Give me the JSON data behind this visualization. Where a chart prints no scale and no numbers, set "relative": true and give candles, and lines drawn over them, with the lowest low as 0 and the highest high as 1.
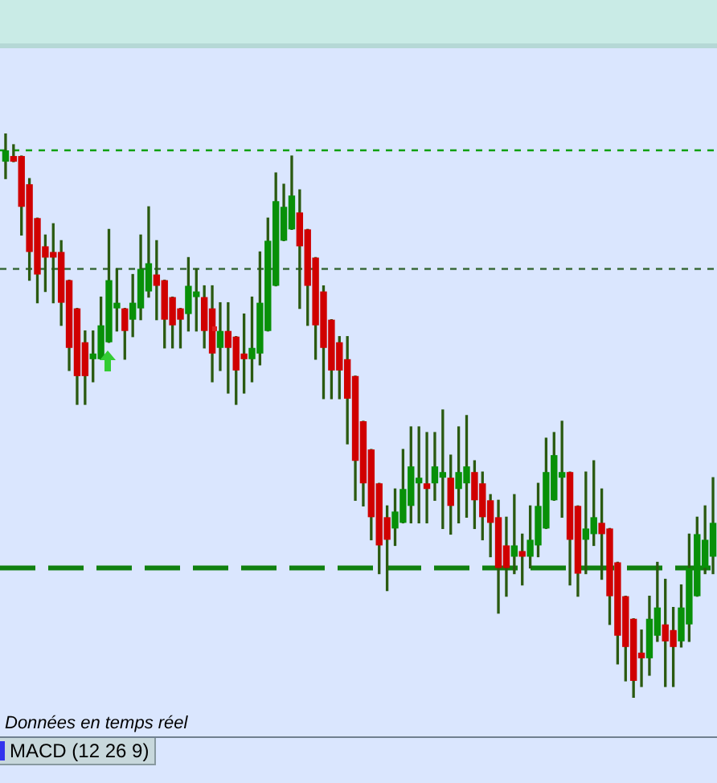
{
  "chart_data": {
    "type": "candlestick",
    "relative": true,
    "categories": [
      null,
      null,
      null,
      null,
      null,
      null,
      null,
      null,
      null,
      null,
      null,
      null,
      null,
      null,
      null,
      null,
      null,
      null,
      null,
      null,
      null,
      null,
      null,
      null,
      null,
      null,
      null,
      null,
      null,
      null,
      null,
      null,
      null,
      null,
      null,
      null,
      null,
      null,
      null,
      null,
      null,
      null,
      null,
      null,
      null,
      null,
      null,
      null,
      null,
      null,
      null,
      null,
      null,
      null,
      null,
      null,
      null,
      null,
      null,
      null,
      null,
      null,
      null,
      null,
      null,
      null,
      null,
      null,
      null,
      null,
      null,
      null,
      null,
      null,
      null,
      null,
      null,
      null,
      null,
      null,
      null,
      null,
      null,
      null,
      null,
      null,
      null,
      null,
      null,
      null
    ],
    "ohlc": [
      [
        0.95,
        1,
        0.92,
        0.97
      ],
      [
        0.96,
        0.98,
        0.95,
        0.95
      ],
      [
        0.96,
        0.96,
        0.82,
        0.87
      ],
      [
        0.91,
        0.92,
        0.74,
        0.79
      ],
      [
        0.85,
        0.85,
        0.7,
        0.75
      ],
      [
        0.8,
        0.82,
        0.72,
        0.78
      ],
      [
        0.79,
        0.84,
        0.7,
        0.78
      ],
      [
        0.79,
        0.81,
        0.66,
        0.7
      ],
      [
        0.74,
        0.74,
        0.58,
        0.62
      ],
      [
        0.69,
        0.69,
        0.52,
        0.57
      ],
      [
        0.63,
        0.65,
        0.52,
        0.57
      ],
      [
        0.6,
        0.65,
        0.56,
        0.61
      ],
      [
        0.6,
        0.71,
        0.6,
        0.66
      ],
      [
        0.63,
        0.83,
        0.63,
        0.74
      ],
      [
        0.69,
        0.76,
        0.65,
        0.7
      ],
      [
        0.69,
        0.69,
        0.6,
        0.65
      ],
      [
        0.67,
        0.75,
        0.64,
        0.7
      ],
      [
        0.69,
        0.82,
        0.67,
        0.76
      ],
      [
        0.72,
        0.87,
        0.71,
        0.77
      ],
      [
        0.75,
        0.81,
        0.67,
        0.73
      ],
      [
        0.74,
        0.74,
        0.62,
        0.67
      ],
      [
        0.71,
        0.71,
        0.62,
        0.66
      ],
      [
        0.69,
        0.69,
        0.62,
        0.67
      ],
      [
        0.68,
        0.78,
        0.65,
        0.73
      ],
      [
        0.71,
        0.76,
        0.65,
        0.72
      ],
      [
        0.71,
        0.73,
        0.62,
        0.65
      ],
      [
        0.69,
        0.73,
        0.56,
        0.61
      ],
      [
        0.62,
        0.7,
        0.58,
        0.65
      ],
      [
        0.65,
        0.7,
        0.54,
        0.62
      ],
      [
        0.64,
        0.64,
        0.52,
        0.58
      ],
      [
        0.61,
        0.68,
        0.54,
        0.6
      ],
      [
        0.6,
        0.71,
        0.56,
        0.62
      ],
      [
        0.61,
        0.79,
        0.59,
        0.7
      ],
      [
        0.65,
        0.85,
        0.65,
        0.81
      ],
      [
        0.73,
        0.93,
        0.73,
        0.88
      ],
      [
        0.81,
        0.91,
        0.81,
        0.87
      ],
      [
        0.83,
        0.96,
        0.83,
        0.89
      ],
      [
        0.86,
        0.9,
        0.69,
        0.8
      ],
      [
        0.83,
        0.83,
        0.66,
        0.73
      ],
      [
        0.78,
        0.78,
        0.6,
        0.66
      ],
      [
        0.72,
        0.73,
        0.53,
        0.62
      ],
      [
        0.67,
        0.67,
        0.53,
        0.58
      ],
      [
        0.63,
        0.64,
        0.53,
        0.58
      ],
      [
        0.6,
        0.64,
        0.45,
        0.53
      ],
      [
        0.57,
        0.57,
        0.35,
        0.42
      ],
      [
        0.49,
        0.49,
        0.34,
        0.38
      ],
      [
        0.44,
        0.44,
        0.28,
        0.32
      ],
      [
        0.38,
        0.38,
        0.22,
        0.27
      ],
      [
        0.32,
        0.34,
        0.19,
        0.28
      ],
      [
        0.3,
        0.37,
        0.27,
        0.33
      ],
      [
        0.31,
        0.44,
        0.31,
        0.37
      ],
      [
        0.34,
        0.48,
        0.31,
        0.41
      ],
      [
        0.38,
        0.48,
        0.31,
        0.39
      ],
      [
        0.38,
        0.47,
        0.31,
        0.37
      ],
      [
        0.38,
        0.47,
        0.35,
        0.41
      ],
      [
        0.39,
        0.51,
        0.3,
        0.4
      ],
      [
        0.39,
        0.43,
        0.29,
        0.34
      ],
      [
        0.37,
        0.48,
        0.31,
        0.4
      ],
      [
        0.38,
        0.5,
        0.32,
        0.41
      ],
      [
        0.4,
        0.42,
        0.3,
        0.35
      ],
      [
        0.38,
        0.4,
        0.28,
        0.32
      ],
      [
        0.35,
        0.36,
        0.25,
        0.31
      ],
      [
        0.32,
        0.35,
        0.15,
        0.23
      ],
      [
        0.27,
        0.32,
        0.18,
        0.23
      ],
      [
        0.25,
        0.36,
        0.22,
        0.27
      ],
      [
        0.26,
        0.29,
        0.2,
        0.25
      ],
      [
        0.25,
        0.34,
        0.23,
        0.28
      ],
      [
        0.27,
        0.38,
        0.25,
        0.34
      ],
      [
        0.3,
        0.46,
        0.3,
        0.4
      ],
      [
        0.35,
        0.47,
        0.35,
        0.43
      ],
      [
        0.39,
        0.49,
        0.32,
        0.4
      ],
      [
        0.4,
        0.4,
        0.2,
        0.28
      ],
      [
        0.34,
        0.34,
        0.18,
        0.22
      ],
      [
        0.28,
        0.4,
        0.22,
        0.3
      ],
      [
        0.29,
        0.42,
        0.27,
        0.32
      ],
      [
        0.31,
        0.37,
        0.21,
        0.29
      ],
      [
        0.3,
        0.3,
        0.13,
        0.18
      ],
      [
        0.24,
        0.24,
        0.06,
        0.11
      ],
      [
        0.18,
        0.18,
        0.03,
        0.09
      ],
      [
        0.14,
        0.14,
        0,
        0.03
      ],
      [
        0.08,
        0.12,
        0.02,
        0.07
      ],
      [
        0.07,
        0.18,
        0.04,
        0.14
      ],
      [
        0.11,
        0.24,
        0.1,
        0.16
      ],
      [
        0.13,
        0.21,
        0.02,
        0.1
      ],
      [
        0.12,
        0.16,
        0.02,
        0.09
      ],
      [
        0.1,
        0.2,
        0.09,
        0.16
      ],
      [
        0.13,
        0.29,
        0.1,
        0.23
      ],
      [
        0.18,
        0.32,
        0.18,
        0.29
      ],
      [
        0.23,
        0.34,
        0.22,
        0.28
      ],
      [
        0.25,
        0.39,
        0.22,
        0.31
      ]
    ],
    "colors": [
      "#089008",
      "#d00000",
      "#d00000",
      "#d00000",
      "#d00000",
      "#d00000",
      "#d00000",
      "#d00000",
      "#d00000",
      "#d00000",
      "#d00000",
      "#089008",
      "#089008",
      "#089008",
      "#089008",
      "#d00000",
      "#089008",
      "#089008",
      "#089008",
      "#d00000",
      "#d00000",
      "#d00000",
      "#d00000",
      "#089008",
      "#089008",
      "#d00000",
      "#d00000",
      "#089008",
      "#d00000",
      "#d00000",
      "#d00000",
      "#089008",
      "#089008",
      "#089008",
      "#089008",
      "#089008",
      "#089008",
      "#d00000",
      "#d00000",
      "#d00000",
      "#d00000",
      "#d00000",
      "#d00000",
      "#d00000",
      "#d00000",
      "#d00000",
      "#d00000",
      "#d00000",
      "#d00000",
      "#089008",
      "#089008",
      "#089008",
      "#089008",
      "#d00000",
      "#089008",
      "#089008",
      "#d00000",
      "#089008",
      "#089008",
      "#d00000",
      "#d00000",
      "#d00000",
      "#d00000",
      "#d00000",
      "#089008",
      "#d00000",
      "#089008",
      "#089008",
      "#089008",
      "#089008",
      "#089008",
      "#d00000",
      "#d00000",
      "#089008",
      "#089008",
      "#d00000",
      "#d00000",
      "#d00000",
      "#d00000",
      "#d00000",
      "#d00000",
      "#089008",
      "#089008",
      "#d00000",
      "#d00000",
      "#089008",
      "#089008",
      "#089008",
      "#089008",
      "#089008"
    ],
    "ref_lines": [
      {
        "axis": "y",
        "value": 0.97,
        "color": "#10a010",
        "line_style": "dotted"
      },
      {
        "axis": "y",
        "value": 0.76,
        "color": "#3a6a3a",
        "line_style": "dotted"
      },
      {
        "axis": "y",
        "value": 0.23,
        "color": "#108010",
        "line_style": "dashed"
      }
    ],
    "annotations": [
      "Données en temps réel",
      "MACD (12 26 9)"
    ],
    "legend": false
  }
}
